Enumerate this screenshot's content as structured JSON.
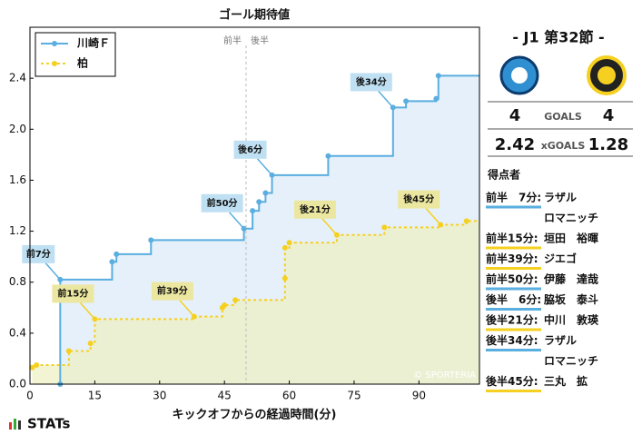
{
  "chart_data": {
    "type": "step",
    "title": "ゴール期待値",
    "x_label": "キックオフからの経過時間(分)",
    "xlim": [
      0,
      104
    ],
    "ylim": [
      0,
      2.8
    ],
    "xticks": [
      0,
      15,
      30,
      45,
      60,
      75,
      90
    ],
    "yticks": [
      {
        "value": 0,
        "label": "0.0"
      },
      0.4,
      0.8,
      1.2,
      1.6,
      {
        "value": 2,
        "label": "2.0"
      },
      2.4
    ],
    "halftime": {
      "x": 50,
      "labels": [
        "前半",
        "後半"
      ]
    },
    "legend": "top-left",
    "series": [
      {
        "name": "川崎Ｆ",
        "color": "#5aaee0",
        "fill": "#dcebf8",
        "x": [
          7,
          7,
          19,
          20,
          28,
          49.5,
          51.5,
          53,
          54.5,
          56,
          69,
          84,
          87,
          94,
          94.5
        ],
        "values": [
          0,
          0.82,
          0.96,
          1.02,
          1.13,
          1.22,
          1.36,
          1.43,
          1.5,
          1.64,
          1.79,
          2.17,
          2.22,
          2.24,
          2.42
        ]
      },
      {
        "name": "柏",
        "color": "#f5d020",
        "fill": "#eef0c4",
        "x": [
          0.5,
          1.5,
          9,
          14,
          15,
          38,
          44.5,
          45,
          47.5,
          59,
          59,
          60,
          71,
          82,
          95,
          101
        ],
        "values": [
          0.13,
          0.15,
          0.26,
          0.32,
          0.51,
          0.53,
          0.6,
          0.62,
          0.66,
          0.83,
          1.07,
          1.11,
          1.17,
          1.23,
          1.25,
          1.28
        ]
      }
    ],
    "annotations": [
      {
        "text": "前7分",
        "x": 7,
        "y": 0.82,
        "series": 0
      },
      {
        "text": "前15分",
        "x": 15,
        "y": 0.51,
        "series": 1
      },
      {
        "text": "前39分",
        "x": 38,
        "y": 0.53,
        "series": 1
      },
      {
        "text": "前50分",
        "x": 49.5,
        "y": 1.22,
        "series": 0
      },
      {
        "text": "後6分",
        "x": 56,
        "y": 1.64,
        "series": 0
      },
      {
        "text": "後21分",
        "x": 71,
        "y": 1.17,
        "series": 1
      },
      {
        "text": "後34分",
        "x": 84,
        "y": 2.17,
        "series": 0
      },
      {
        "text": "後45分",
        "x": 95,
        "y": 1.25,
        "series": 1
      }
    ],
    "watermark": "© SPORTERIA"
  },
  "panel": {
    "title": "- J1 第32節 -",
    "goals_label": "GOALS",
    "goals": [
      4,
      4
    ],
    "xgoals_label": "xGOALS",
    "xgoals": [
      2.42,
      1.28
    ],
    "scorers_title": "得点者",
    "scorers": [
      {
        "time": "前半　7分:",
        "name": [
          "ラザル",
          "ロマニッチ"
        ],
        "team": 0
      },
      {
        "time": "前半15分:",
        "name": [
          "垣田　裕暉"
        ],
        "team": 1
      },
      {
        "time": "前半39分:",
        "name": [
          "ジエゴ"
        ],
        "team": 1
      },
      {
        "time": "前半50分:",
        "name": [
          "伊藤　達哉"
        ],
        "team": 0
      },
      {
        "time": "後半　6分:",
        "name": [
          "脇坂　泰斗"
        ],
        "team": 0
      },
      {
        "time": "後半21分:",
        "name": [
          "中川　敦瑛"
        ],
        "team": 1
      },
      {
        "time": "後半34分:",
        "name": [
          "ラザル",
          "ロマニッチ"
        ],
        "team": 0
      },
      {
        "time": "後半45分:",
        "name": [
          "三丸　拡"
        ],
        "team": 1
      }
    ]
  },
  "logo": "STATs"
}
